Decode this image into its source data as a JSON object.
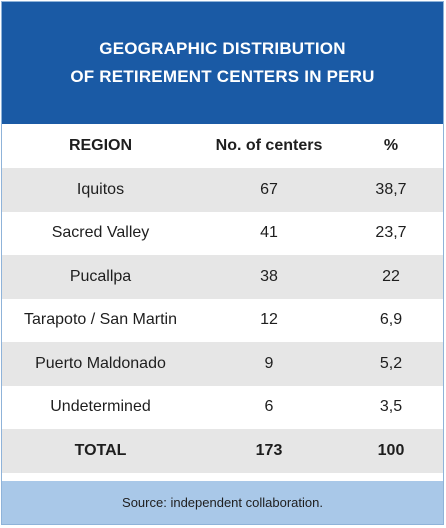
{
  "title": {
    "line1": "GEOGRAPHIC DISTRIBUTION",
    "line2": "OF RETIREMENT CENTERS IN PERU"
  },
  "table": {
    "headers": [
      "REGION",
      "No. of centers",
      "%"
    ],
    "rows": [
      {
        "region": "Iquitos",
        "centers": "67",
        "percent": "38,7"
      },
      {
        "region": "Sacred Valley",
        "centers": "41",
        "percent": "23,7"
      },
      {
        "region": "Pucallpa",
        "centers": "38",
        "percent": "22"
      },
      {
        "region": "Tarapoto / San Martin",
        "centers": "12",
        "percent": "6,9"
      },
      {
        "region": "Puerto Maldonado",
        "centers": "9",
        "percent": "5,2"
      },
      {
        "region": "Undetermined",
        "centers": "6",
        "percent": "3,5"
      }
    ],
    "total": {
      "region": "TOTAL",
      "centers": "173",
      "percent": "100"
    }
  },
  "footer": {
    "source": "Source: independent collaboration."
  },
  "colors": {
    "title_band": "#1a5aa5",
    "shaded_row": "#e6e6e6",
    "footer_band": "#a9c8e8",
    "border": "#8fb3d9"
  }
}
